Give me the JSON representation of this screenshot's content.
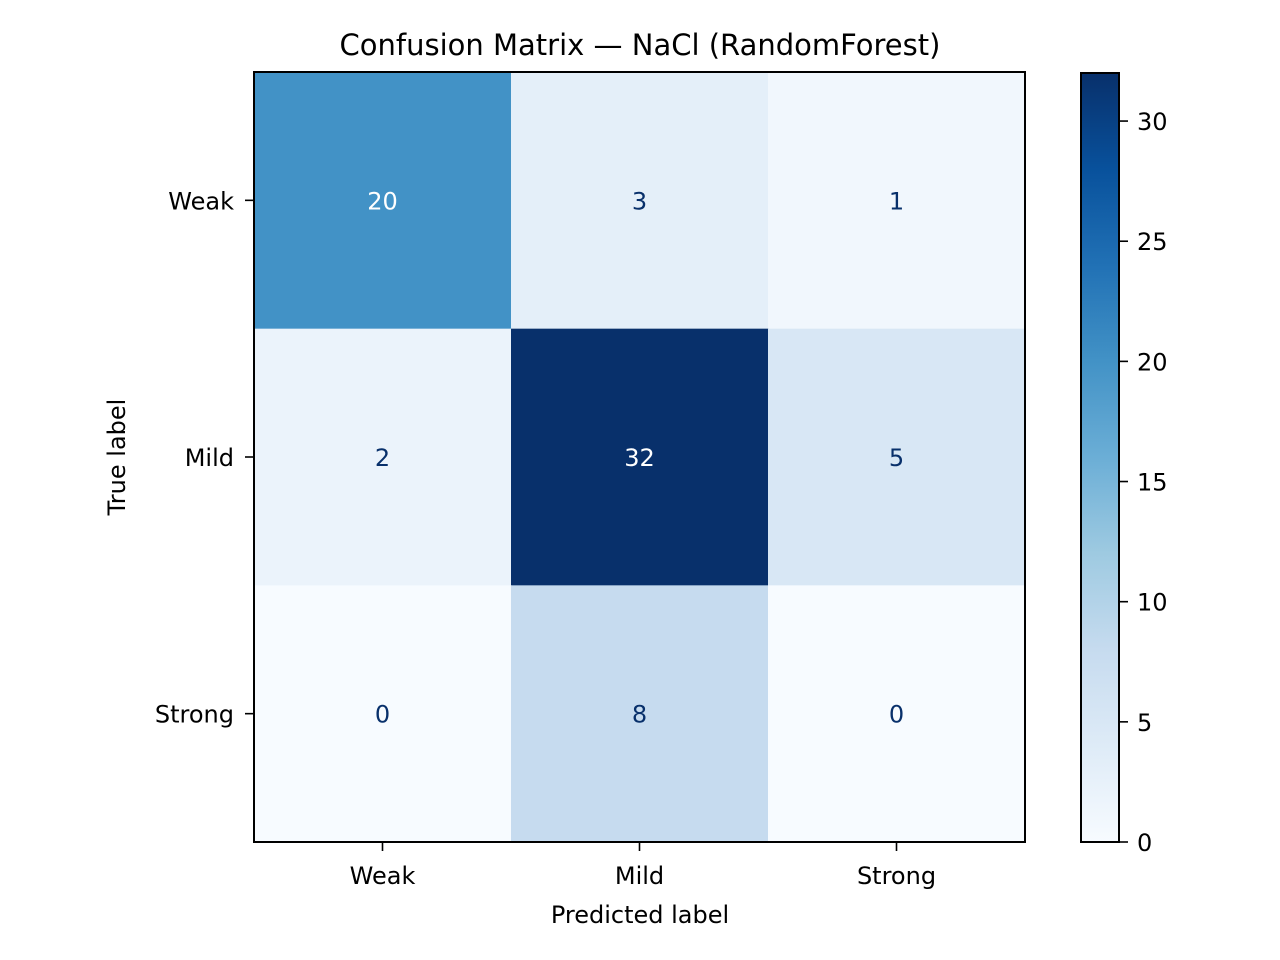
{
  "chart_data": {
    "type": "heatmap",
    "title": "Confusion Matrix — NaCl (RandomForest)",
    "xlabel": "Predicted label",
    "ylabel": "True label",
    "x_categories": [
      "Weak",
      "Mild",
      "Strong"
    ],
    "y_categories": [
      "Weak",
      "Mild",
      "Strong"
    ],
    "matrix": [
      [
        20,
        3,
        1
      ],
      [
        2,
        32,
        5
      ],
      [
        0,
        8,
        0
      ]
    ],
    "colormap": "Blues",
    "color_range": [
      0,
      32
    ],
    "colorbar_ticks": [
      0,
      5,
      10,
      15,
      20,
      25,
      30
    ],
    "text_color_dark": "#08306b",
    "text_color_light": "#ffffff"
  }
}
